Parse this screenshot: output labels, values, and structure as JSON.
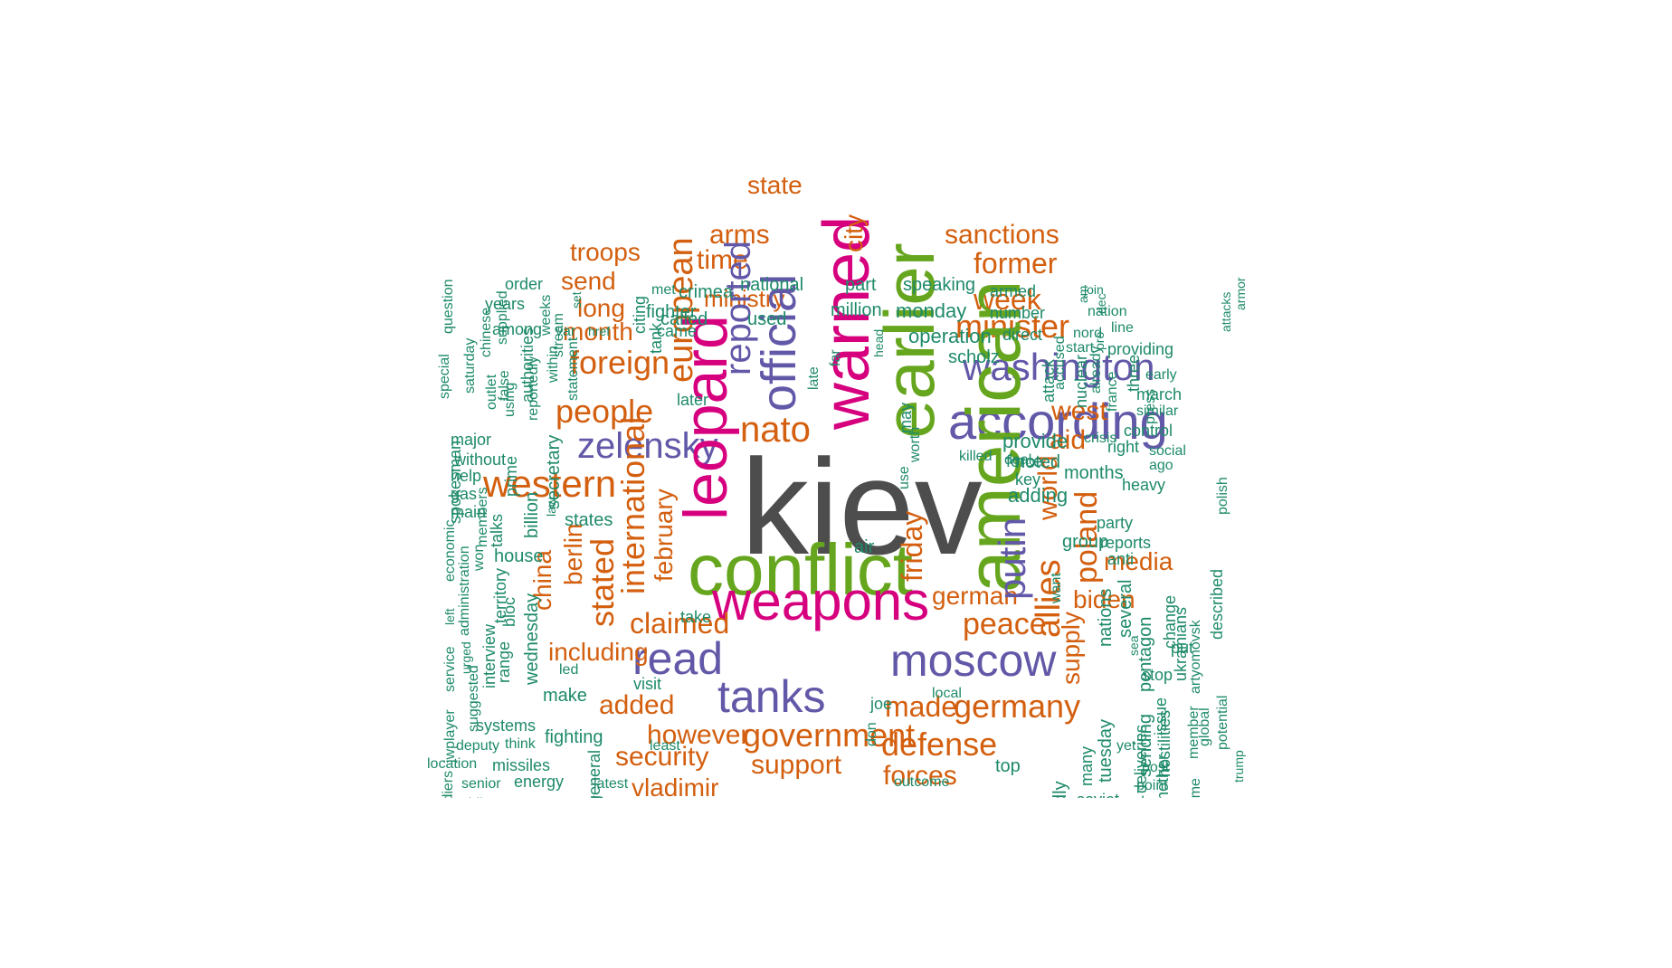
{
  "colors": {
    "gray": "#4d4d4d",
    "green": "#66a61e",
    "magenta": "#d6007f",
    "purple": "#6258a8",
    "orange": "#d35f0f",
    "teal": "#1e8a6a"
  },
  "words": [
    {
      "t": "kiev",
      "c": "gray",
      "w": 100
    },
    {
      "t": "conflict",
      "c": "green",
      "w": 58
    },
    {
      "t": "weapons",
      "c": "magenta",
      "w": 46
    },
    {
      "t": "read",
      "c": "green",
      "w": 60
    },
    {
      "t": "moscow",
      "c": "green",
      "w": 58
    },
    {
      "t": "tanks",
      "c": "magenta",
      "w": 56
    },
    {
      "t": "western",
      "c": "magenta",
      "w": 54
    },
    {
      "t": "zelensky",
      "c": "purple",
      "w": 48
    },
    {
      "t": "nato",
      "c": "purple",
      "w": 48
    },
    {
      "t": "according",
      "c": "purple",
      "w": 44
    },
    {
      "t": "washington",
      "c": "purple",
      "w": 44
    },
    {
      "t": "minister",
      "c": "purple",
      "w": 44
    },
    {
      "t": "government",
      "c": "orange",
      "w": 38
    },
    {
      "t": "germany",
      "c": "purple",
      "w": 38
    },
    {
      "t": "defense",
      "c": "purple",
      "w": 36
    },
    {
      "t": "people",
      "c": "purple",
      "w": 36
    },
    {
      "t": "foreign",
      "c": "purple",
      "w": 36
    },
    {
      "t": "made",
      "c": "orange",
      "w": 36
    },
    {
      "t": "forces",
      "c": "orange",
      "w": 34
    },
    {
      "t": "support",
      "c": "orange",
      "w": 33
    },
    {
      "t": "added",
      "c": "orange",
      "w": 33
    },
    {
      "t": "security",
      "c": "orange",
      "w": 33
    },
    {
      "t": "however",
      "c": "orange",
      "w": 32
    },
    {
      "t": "claimed",
      "c": "orange",
      "w": 32
    },
    {
      "t": "peace",
      "c": "orange",
      "w": 32
    },
    {
      "t": "german",
      "c": "orange",
      "w": 32
    },
    {
      "t": "biden",
      "c": "orange",
      "w": 32
    },
    {
      "t": "media",
      "c": "orange",
      "w": 32
    },
    {
      "t": "vladimir",
      "c": "orange",
      "w": 30
    },
    {
      "t": "west",
      "c": "orange",
      "w": 30
    },
    {
      "t": "aid",
      "c": "orange",
      "w": 30
    },
    {
      "t": "former",
      "c": "orange",
      "w": 30
    },
    {
      "t": "week",
      "c": "orange",
      "w": 30
    },
    {
      "t": "sanctions",
      "c": "orange",
      "w": 28
    },
    {
      "t": "state",
      "c": "orange",
      "w": 28
    },
    {
      "t": "arms",
      "c": "orange",
      "w": 28
    },
    {
      "t": "time",
      "c": "orange",
      "w": 28
    },
    {
      "t": "troops",
      "c": "orange",
      "w": 28
    },
    {
      "t": "send",
      "c": "orange",
      "w": 28
    },
    {
      "t": "long",
      "c": "orange",
      "w": 28
    },
    {
      "t": "month",
      "c": "orange",
      "w": 28
    },
    {
      "t": "including",
      "c": "orange",
      "w": 28
    },
    {
      "t": "ministry",
      "c": "orange",
      "w": 28
    },
    {
      "t": "american",
      "c": "orange",
      "w": 28
    },
    {
      "t": "earlier",
      "c": "orange",
      "w": 28
    },
    {
      "t": "warned",
      "c": "orange",
      "w": 27
    },
    {
      "t": "leopard",
      "c": "orange",
      "w": 27
    },
    {
      "t": "official",
      "c": "orange",
      "w": 27
    },
    {
      "t": "reported",
      "c": "orange",
      "w": 26
    },
    {
      "t": "european",
      "c": "orange",
      "w": 26
    },
    {
      "t": "putin",
      "c": "orange",
      "w": 26
    },
    {
      "t": "world",
      "c": "orange",
      "w": 26
    },
    {
      "t": "allies",
      "c": "orange",
      "w": 26
    },
    {
      "t": "poland",
      "c": "orange",
      "w": 26
    },
    {
      "t": "friday",
      "c": "orange",
      "w": 26
    },
    {
      "t": "international",
      "c": "orange",
      "w": 26
    },
    {
      "t": "stated",
      "c": "orange",
      "w": 26
    },
    {
      "t": "berlin",
      "c": "orange",
      "w": 26
    },
    {
      "t": "february",
      "c": "orange",
      "w": 26
    },
    {
      "t": "china",
      "c": "orange",
      "w": 26
    },
    {
      "t": "supply",
      "c": "orange",
      "w": 26
    },
    {
      "t": "city",
      "c": "orange",
      "w": 26
    }
  ]
}
